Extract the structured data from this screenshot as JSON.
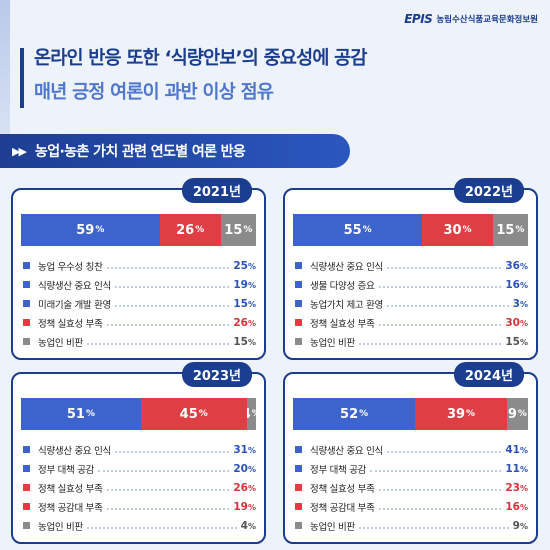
{
  "logo": {
    "mark": "EPIS",
    "org_name": "농림수산식품교육문화정보원"
  },
  "title": {
    "line1": "온라인 반응 또한 ‘식량안보’의 중요성에 공감",
    "line2": "매년 긍정 여론이 과반 이상 점유"
  },
  "subtitle": {
    "icon": "▶▶",
    "text": "농업·농촌 가치 관련 연도별 여론 반응"
  },
  "colors": {
    "positive": "#3d63cc",
    "negative": "#e03e45",
    "neutral": "#8b8b8b",
    "frame": "#1b3d8f"
  },
  "chart_data": [
    {
      "type": "bar",
      "year": "2021년",
      "stack": [
        {
          "value": 59,
          "tone": "positive"
        },
        {
          "value": 26,
          "tone": "negative"
        },
        {
          "value": 15,
          "tone": "neutral"
        }
      ],
      "items": [
        {
          "label": "농업 우수성 칭찬",
          "value": 25,
          "tone": "positive"
        },
        {
          "label": "식량생산 중요 인식",
          "value": 19,
          "tone": "positive"
        },
        {
          "label": "미래기술 개발 환영",
          "value": 15,
          "tone": "positive"
        },
        {
          "label": "정책 실효성 부족",
          "value": 26,
          "tone": "negative"
        },
        {
          "label": "농업인 비판",
          "value": 15,
          "tone": "neutral"
        }
      ]
    },
    {
      "type": "bar",
      "year": "2022년",
      "stack": [
        {
          "value": 55,
          "tone": "positive"
        },
        {
          "value": 30,
          "tone": "negative"
        },
        {
          "value": 15,
          "tone": "neutral"
        }
      ],
      "items": [
        {
          "label": "식량생산 중요 인식",
          "value": 36,
          "tone": "positive"
        },
        {
          "label": "생물 다양성 증요",
          "value": 16,
          "tone": "positive"
        },
        {
          "label": "농업가치 제고 환영",
          "value": 3,
          "tone": "positive"
        },
        {
          "label": "정책 실효성 부족",
          "value": 30,
          "tone": "negative"
        },
        {
          "label": "농업인 비판",
          "value": 15,
          "tone": "neutral"
        }
      ]
    },
    {
      "type": "bar",
      "year": "2023년",
      "stack": [
        {
          "value": 51,
          "tone": "positive"
        },
        {
          "value": 45,
          "tone": "negative"
        },
        {
          "value": 4,
          "tone": "neutral"
        }
      ],
      "items": [
        {
          "label": "식량생산 중요 인식",
          "value": 31,
          "tone": "positive"
        },
        {
          "label": "정부 대책 공감",
          "value": 20,
          "tone": "positive"
        },
        {
          "label": "정책 실효성 부족",
          "value": 26,
          "tone": "negative"
        },
        {
          "label": "정책 공감대 부족",
          "value": 19,
          "tone": "negative"
        },
        {
          "label": "농업인 비판",
          "value": 4,
          "tone": "neutral"
        }
      ]
    },
    {
      "type": "bar",
      "year": "2024년",
      "stack": [
        {
          "value": 52,
          "tone": "positive"
        },
        {
          "value": 39,
          "tone": "negative"
        },
        {
          "value": 9,
          "tone": "neutral"
        }
      ],
      "items": [
        {
          "label": "식량생산 중요 인식",
          "value": 41,
          "tone": "positive"
        },
        {
          "label": "정부 대책 공감",
          "value": 11,
          "tone": "positive"
        },
        {
          "label": "정책 실효성 부족",
          "value": 23,
          "tone": "negative"
        },
        {
          "label": "정책 공감대 부족",
          "value": 16,
          "tone": "negative"
        },
        {
          "label": "농업인 비판",
          "value": 9,
          "tone": "neutral"
        }
      ]
    }
  ]
}
